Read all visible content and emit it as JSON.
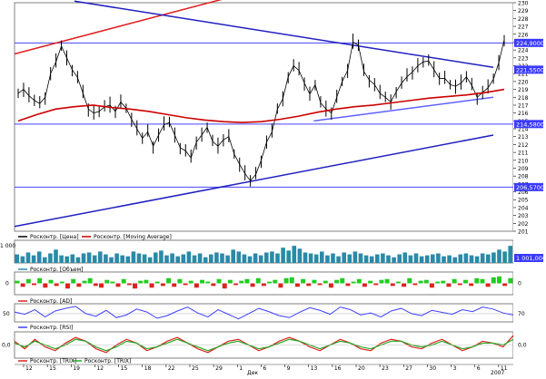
{
  "chart_data": [
    {
      "type": "line",
      "panel": "price",
      "ylim": [
        201,
        230
      ],
      "y_ticks": [
        230,
        229,
        228,
        227,
        226,
        225,
        224,
        223,
        222,
        221,
        220,
        219,
        218,
        217,
        216,
        215,
        214,
        213,
        212,
        211,
        210,
        209,
        208,
        207,
        206,
        205,
        204,
        203,
        202,
        201
      ],
      "price_badges": [
        {
          "label": "224,9000",
          "color": "#3a3aff"
        },
        {
          "label": "221,5500",
          "color": "#3a3aff"
        },
        {
          "label": "214,5800",
          "color": "#3a3aff"
        },
        {
          "label": "206,5700",
          "color": "#3a3aff"
        }
      ],
      "horizontal_levels": [
        224.9,
        214.6,
        206.6
      ],
      "trendlines": [
        {
          "x": [
            0,
            0.42
          ],
          "y": [
            223.5,
            230.5
          ],
          "color": "#e02020"
        },
        {
          "x": [
            0.12,
            0.96
          ],
          "y": [
            230.2,
            221.8
          ],
          "color": "#2020c0"
        },
        {
          "x": [
            0.0,
            0.96
          ],
          "y": [
            201.6,
            213.2
          ],
          "color": "#2020c0"
        },
        {
          "x": [
            0.6,
            0.96
          ],
          "y": [
            215.0,
            218.0
          ],
          "color": "#6060ff"
        }
      ],
      "series": [
        {
          "name": "Росконтр. [Цена]",
          "color": "#000000",
          "values": [
            218.5,
            219,
            218.2,
            217.6,
            217.2,
            218,
            221,
            222.5,
            224.5,
            223,
            221.5,
            220.5,
            218.5,
            216.5,
            216,
            216.2,
            216.8,
            217,
            216.2,
            217.4,
            216.6,
            215.2,
            214,
            212.8,
            213.6,
            211.8,
            213.2,
            214.5,
            214.8,
            213.2,
            211.6,
            211.2,
            210.3,
            212.3,
            213.2,
            214.2,
            212.4,
            211.8,
            212.6,
            213,
            210.8,
            209.5,
            208.3,
            207.4,
            208.2,
            210,
            212.3,
            213.6,
            216.5,
            217.8,
            220.6,
            222,
            221.4,
            219.8,
            218.4,
            219.6,
            217.3,
            216.5,
            216,
            218,
            220,
            221.4,
            225,
            224.6,
            221.3,
            220.2,
            219.6,
            218.5,
            218,
            217.4,
            218.7,
            219.8,
            220.6,
            221.2,
            222,
            222.5,
            222.6,
            221.5,
            220.4,
            220.4,
            219.6,
            219.4,
            219.8,
            220.6,
            219.5,
            218,
            218.6,
            219.2,
            220.3,
            222.4,
            225.3
          ]
        },
        {
          "name": "Росконтр. [Moving Average]",
          "color": "#cc0000",
          "values": [
            215,
            215.8,
            216.5,
            216.8,
            217,
            216.7,
            216.5,
            216.2,
            215.8,
            215.4,
            215.1,
            214.9,
            214.8,
            214.9,
            215.2,
            215.6,
            216.1,
            216.5,
            216.8,
            217,
            217.3,
            217.6,
            217.9,
            218.1,
            218.3,
            218.6,
            219.0
          ]
        }
      ]
    },
    {
      "type": "bar",
      "panel": "volume",
      "series_name": "Росконтр. [Объем]",
      "y_tick": "1 000",
      "badge": "1 001,000",
      "color": "#2a8aa8",
      "values": [
        0.45,
        0.35,
        0.55,
        0.4,
        0.6,
        0.3,
        0.5,
        0.7,
        0.4,
        0.35,
        0.45,
        0.3,
        0.5,
        0.55,
        0.4,
        0.6,
        0.45,
        0.3,
        0.5,
        0.4,
        0.35,
        0.6,
        0.5,
        0.45,
        0.3,
        0.55,
        0.65,
        0.4,
        0.5,
        0.35,
        0.45,
        0.6,
        0.4,
        0.5,
        0.3,
        0.45,
        0.55,
        0.5,
        0.4,
        0.7,
        0.6,
        0.45,
        0.35,
        0.5,
        0.4,
        0.55,
        0.6,
        0.5,
        0.8,
        0.65,
        0.9,
        0.75,
        0.55,
        0.5,
        0.45,
        0.6,
        0.4,
        0.5,
        0.35,
        0.55,
        0.45,
        0.6,
        0.5,
        0.4,
        0.35,
        0.45,
        0.5,
        0.4,
        0.3,
        0.45,
        0.55,
        0.4,
        0.5,
        0.35,
        0.4,
        0.45,
        0.5,
        0.35,
        0.4,
        0.3,
        0.45,
        0.5,
        0.4,
        0.35,
        0.5,
        0.45,
        0.55,
        0.7,
        0.6,
        0.9
      ]
    },
    {
      "type": "bar",
      "panel": "ad",
      "series_name": "Росконтр. [AD]",
      "y_tick": "0",
      "badge": "0",
      "colors": {
        "up": "#22cc22",
        "down": "#dd2222"
      },
      "values": [
        0.3,
        -0.4,
        0.5,
        -0.2,
        0.6,
        -0.5,
        0.4,
        -0.3,
        0.2,
        -0.6,
        0.5,
        -0.4,
        0.3,
        0.6,
        -0.3,
        -0.5,
        0.4,
        0.2,
        -0.4,
        0.5,
        -0.2,
        -0.6,
        0.3,
        0.4,
        -0.5,
        0.2,
        -0.3,
        0.6,
        -0.4,
        0.5,
        -0.2,
        0.3,
        -0.5,
        0.4,
        0.2,
        -0.3,
        0.5,
        -0.6,
        0.4,
        -0.2,
        0.3,
        0.5,
        -0.4,
        0.6,
        -0.3,
        0.2,
        0.4,
        -0.5,
        0.6,
        0.7,
        -0.4,
        0.5,
        -0.3,
        0.4,
        -0.2,
        0.3,
        -0.5,
        0.4,
        0.6,
        -0.3,
        0.2,
        0.5,
        -0.4,
        0.3,
        -0.2,
        0.4,
        0.5,
        -0.3,
        0.2,
        -0.4,
        0.6,
        -0.2,
        0.3,
        0.4,
        -0.5,
        0.2,
        0.3,
        -0.4,
        0.5,
        -0.2,
        0.4,
        -0.3,
        0.6,
        0.5,
        -0.4,
        0.7,
        0.8,
        -0.3,
        0.6
      ]
    },
    {
      "type": "line",
      "panel": "rsi",
      "series": [
        {
          "name": "Росконтр. [RSI]",
          "color": "#4040ff",
          "values": [
            55,
            48,
            62,
            40,
            58,
            66,
            72,
            50,
            42,
            60,
            38,
            46,
            64,
            55,
            36,
            44,
            58,
            70,
            52,
            40,
            62,
            48,
            34,
            50,
            66,
            56,
            44,
            38,
            54,
            68,
            60,
            48,
            70,
            62,
            46,
            52,
            40,
            58,
            66,
            50,
            44,
            60,
            54,
            48,
            62,
            56,
            70,
            64,
            52,
            46
          ]
        }
      ],
      "y_ticks": [
        "50"
      ],
      "badge": "70"
    },
    {
      "type": "line",
      "panel": "trix",
      "series": [
        {
          "name": "Росконтр. [TRIX]",
          "color": "#dd2222",
          "values": [
            0.2,
            -0.2,
            0.3,
            -0.1,
            -0.3,
            0.1,
            0.4,
            0.2,
            -0.2,
            -0.4,
            0.0,
            0.3,
            0.1,
            -0.3,
            -0.1,
            0.2,
            0.4,
            0.1,
            -0.2,
            -0.4,
            -0.1,
            0.2,
            0.3,
            0.0,
            -0.3,
            -0.1,
            0.2,
            0.4,
            0.2,
            -0.1,
            -0.3,
            0.0,
            0.3,
            0.1,
            -0.2,
            -0.3,
            0.1,
            0.3,
            0.2,
            -0.1,
            -0.2,
            0.1,
            0.3,
            0.0,
            -0.3,
            -0.1,
            0.2,
            0.1,
            -0.1,
            0.5
          ]
        },
        {
          "name": "Росконтр. [TRIX]",
          "color": "#22aa22",
          "values": [
            0.1,
            -0.1,
            0.2,
            0.0,
            -0.2,
            0.0,
            0.3,
            0.2,
            -0.1,
            -0.3,
            -0.1,
            0.2,
            0.1,
            -0.2,
            -0.1,
            0.1,
            0.3,
            0.1,
            -0.1,
            -0.3,
            -0.1,
            0.1,
            0.2,
            0.0,
            -0.2,
            -0.1,
            0.1,
            0.3,
            0.2,
            0.0,
            -0.2,
            0.0,
            0.2,
            0.1,
            -0.1,
            -0.2,
            0.0,
            0.2,
            0.2,
            0.0,
            -0.1,
            0.0,
            0.2,
            0.0,
            -0.2,
            -0.1,
            0.1,
            0.1,
            0.0,
            0.3
          ]
        }
      ],
      "y_ticks": [
        "0,0"
      ],
      "badge": "0,0"
    }
  ],
  "x_axis": {
    "ticks": [
      "12",
      "15",
      "19",
      "12",
      "15",
      "18",
      "22",
      "25",
      "29",
      "1",
      "6",
      "9",
      "13",
      "16",
      "20",
      "23",
      "27",
      "30",
      "3",
      "6",
      "11"
    ],
    "month_labels": [
      "Дек",
      "2007"
    ]
  }
}
